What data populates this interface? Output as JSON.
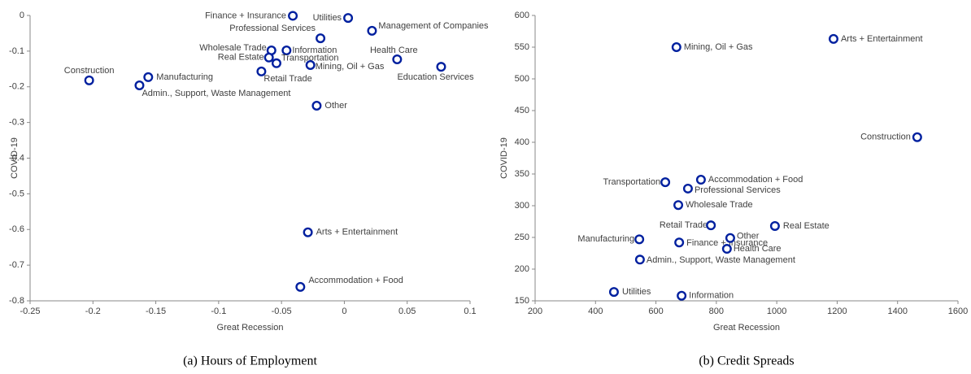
{
  "chart_data": [
    {
      "type": "scatter",
      "caption": "(a) Hours of Employment",
      "xlabel": "Great Recession",
      "ylabel": "COVID-19",
      "marker_color": "#00209f",
      "xlim": [
        -0.25,
        0.1
      ],
      "xticks": [
        -0.25,
        -0.2,
        -0.15,
        -0.1,
        -0.05,
        0,
        0.05,
        0.1
      ],
      "ylim": [
        -0.8,
        0
      ],
      "yticks": [
        -0.8,
        -0.7,
        -0.6,
        -0.5,
        -0.4,
        -0.3,
        -0.2,
        -0.1,
        0
      ],
      "labels": [
        "Finance + Insurance",
        "Utilities",
        "Professional Services",
        "Management of Companies",
        "Wholesale Trade",
        "Information",
        "Real Estate",
        "Transportation",
        "Mining, Oil + Gas",
        "Health Care",
        "Education Services",
        "Retail Trade",
        "Construction",
        "Manufacturing",
        "Admin., Support, Waste Management",
        "Other",
        "Arts + Entertainment",
        "Accommodation + Food"
      ],
      "x": [
        -0.041,
        0.003,
        -0.019,
        0.022,
        -0.058,
        -0.046,
        -0.06,
        -0.054,
        -0.027,
        0.042,
        0.077,
        -0.066,
        -0.203,
        -0.156,
        -0.163,
        -0.022,
        -0.029,
        -0.035
      ],
      "y": [
        -0.001,
        -0.007,
        -0.064,
        -0.043,
        -0.098,
        -0.098,
        -0.118,
        -0.134,
        -0.139,
        -0.123,
        -0.144,
        -0.157,
        -0.182,
        -0.173,
        -0.196,
        -0.253,
        -0.608,
        -0.761
      ]
    },
    {
      "type": "scatter",
      "caption": "(b) Credit Spreads",
      "xlabel": "Great Recession",
      "ylabel": "COVID-19",
      "marker_color": "#00209f",
      "xlim": [
        200,
        1600
      ],
      "xticks": [
        200,
        400,
        600,
        800,
        1000,
        1200,
        1400,
        1600
      ],
      "ylim": [
        150,
        600
      ],
      "yticks": [
        150,
        200,
        250,
        300,
        350,
        400,
        450,
        500,
        550,
        600
      ],
      "labels": [
        "Arts + Entertainment",
        "Mining, Oil + Gas",
        "Construction",
        "Transportation",
        "Accommodation + Food",
        "Professional Services",
        "Wholesale Trade",
        "Retail Trade",
        "Real Estate",
        "Manufacturing",
        "Finance + Insurance",
        "Other",
        "Health Care",
        "Admin., Support, Waste Management",
        "Utilities",
        "Information"
      ],
      "x": [
        1188,
        668,
        1465,
        631,
        749,
        706,
        674,
        782,
        994,
        545,
        677,
        846,
        835,
        547,
        461,
        685
      ],
      "y": [
        563,
        550,
        408,
        337,
        341,
        327,
        301,
        269,
        268,
        247,
        242,
        249,
        232,
        215,
        164,
        158
      ]
    }
  ]
}
